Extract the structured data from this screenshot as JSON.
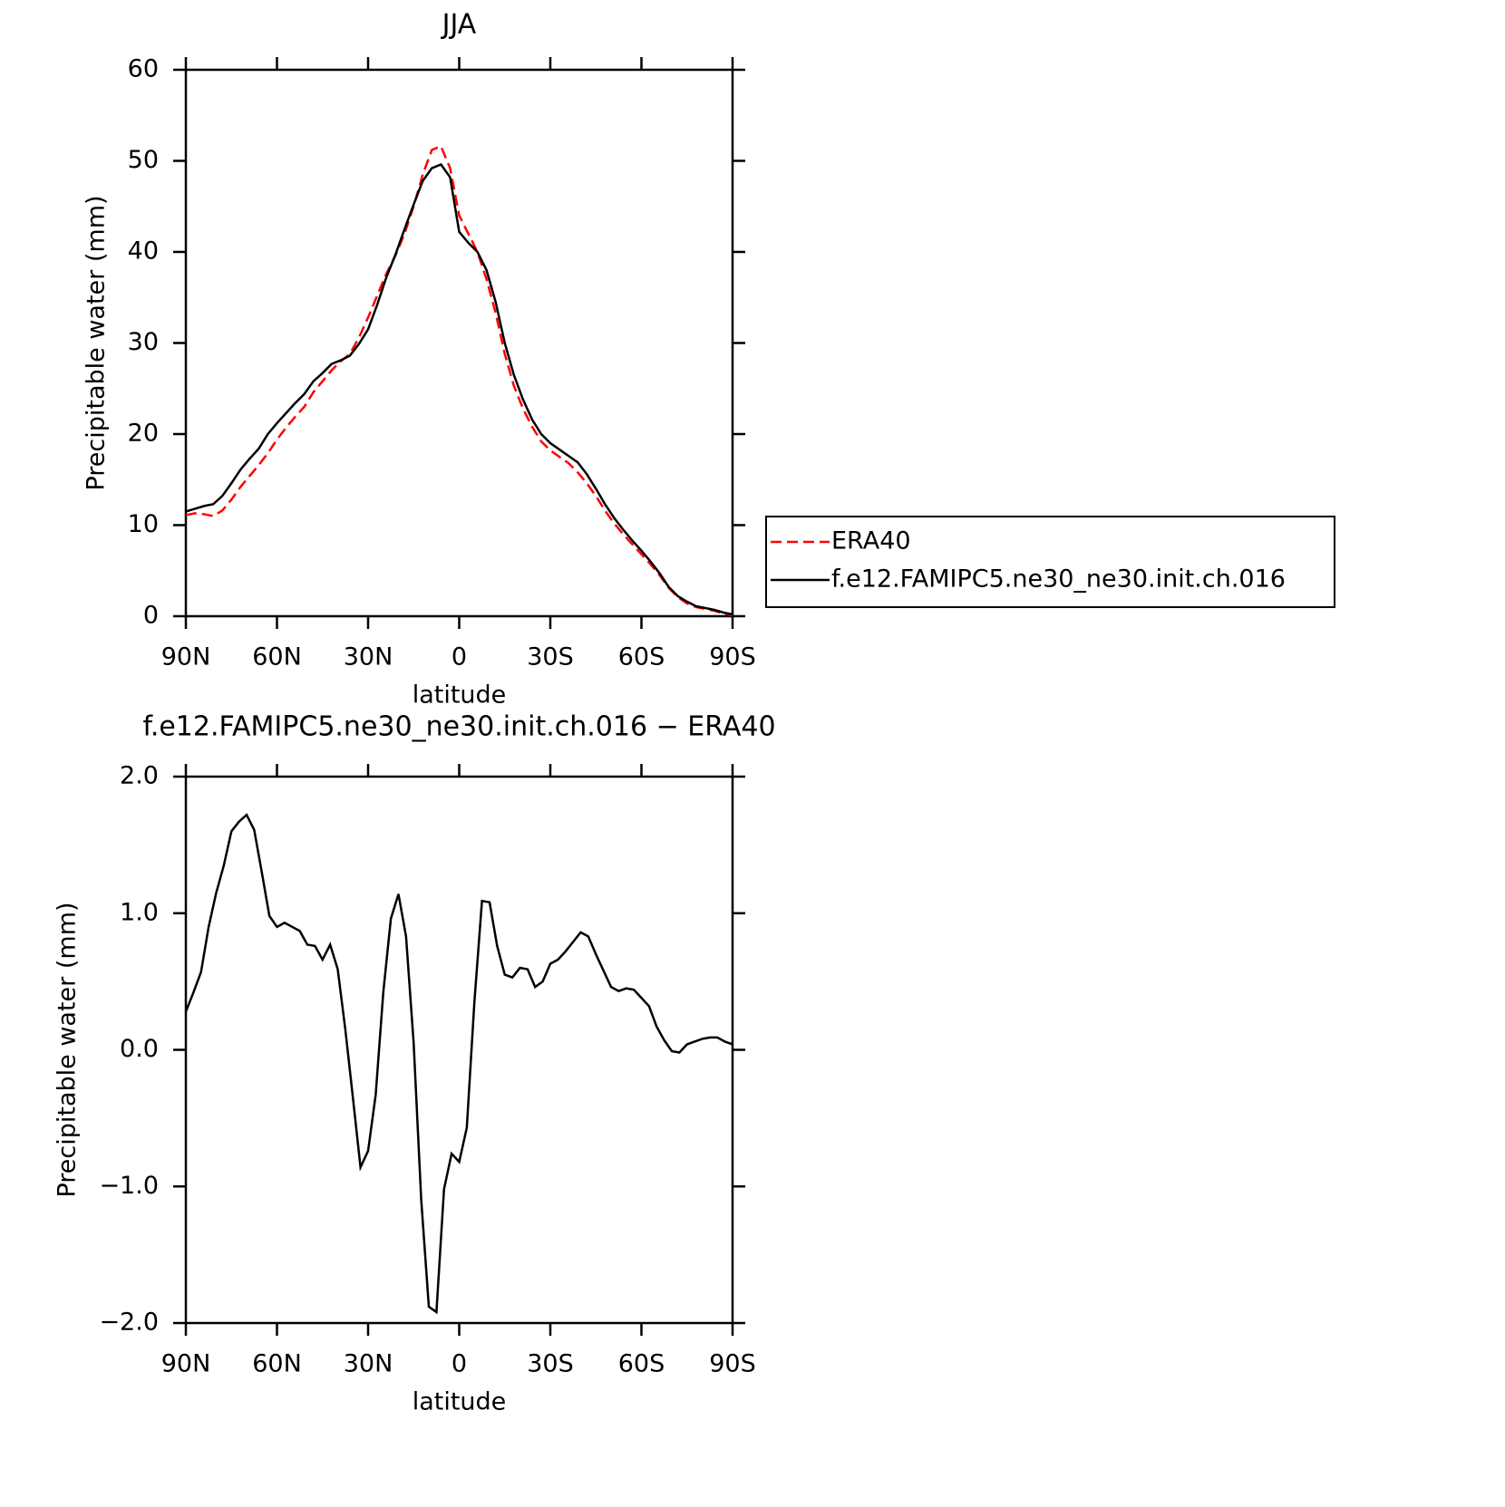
{
  "chart_data": [
    {
      "type": "line",
      "title": "JJA",
      "xlabel": "latitude",
      "ylabel": "Precipitable water (mm)",
      "xlim": [
        90,
        -90
      ],
      "ylim": [
        0,
        60
      ],
      "xticks": [
        {
          "value": 90,
          "label": "90N"
        },
        {
          "value": 60,
          "label": "60N"
        },
        {
          "value": 30,
          "label": "30N"
        },
        0,
        {
          "value": -30,
          "label": "30S"
        },
        {
          "value": -60,
          "label": "60S"
        },
        {
          "value": -90,
          "label": "90S"
        }
      ],
      "yticks": [
        0,
        10,
        20,
        30,
        40,
        50,
        60
      ],
      "legend": "right",
      "x": [
        90,
        87,
        84,
        81,
        78,
        75,
        72,
        69,
        66,
        63,
        60,
        57,
        54,
        51,
        48,
        45,
        42,
        39,
        36,
        33,
        30,
        27,
        24,
        21,
        18,
        15,
        12,
        9,
        6,
        3,
        0,
        -3,
        -6,
        -9,
        -12,
        -15,
        -18,
        -21,
        -24,
        -27,
        -30,
        -33,
        -36,
        -39,
        -42,
        -45,
        -48,
        -51,
        -54,
        -57,
        -60,
        -63,
        -66,
        -69,
        -72,
        -75,
        -78,
        -81,
        -84,
        -87,
        -90
      ],
      "series": [
        {
          "name": "ERA40",
          "color": "#ff0000",
          "dash": true,
          "values": [
            11.1,
            11.3,
            11.2,
            11.0,
            11.6,
            12.8,
            14.2,
            15.4,
            16.6,
            17.9,
            19.4,
            20.7,
            21.9,
            23.0,
            24.6,
            25.8,
            27.0,
            28.0,
            28.8,
            30.6,
            32.8,
            35.2,
            37.6,
            39.6,
            42.0,
            45.0,
            48.5,
            51.2,
            51.6,
            49.2,
            44.0,
            42.0,
            40.0,
            37.0,
            33.3,
            28.8,
            25.3,
            22.8,
            20.8,
            19.2,
            18.2,
            17.5,
            16.8,
            15.8,
            14.6,
            13.2,
            11.6,
            10.2,
            9.0,
            7.9,
            6.8,
            5.7,
            4.5,
            3.1,
            2.1,
            1.4,
            1.0,
            0.8,
            0.6,
            0.3,
            0.1
          ]
        },
        {
          "name": "f.e12.FAMIPC5.ne30_ne30.init.ch.016",
          "color": "#000000",
          "dash": false,
          "values": [
            11.5,
            11.8,
            12.1,
            12.3,
            13.2,
            14.6,
            16.1,
            17.3,
            18.4,
            20.0,
            21.2,
            22.3,
            23.4,
            24.4,
            25.8,
            26.7,
            27.7,
            28.1,
            28.6,
            29.9,
            31.5,
            34.2,
            37.2,
            39.7,
            42.5,
            45.2,
            47.8,
            49.2,
            49.6,
            48.2,
            42.2,
            41.0,
            40.0,
            38.0,
            34.5,
            30.0,
            26.5,
            23.8,
            21.6,
            20.0,
            19.0,
            18.3,
            17.6,
            16.9,
            15.6,
            14.0,
            12.3,
            10.8,
            9.5,
            8.3,
            7.2,
            6.0,
            4.7,
            3.2,
            2.2,
            1.6,
            1.1,
            0.9,
            0.7,
            0.4,
            0.2
          ]
        }
      ]
    },
    {
      "type": "line",
      "title": "f.e12.FAMIPC5.ne30_ne30.init.ch.016 − ERA40",
      "xlabel": "latitude",
      "ylabel": "Precipitable water (mm)",
      "xlim": [
        90,
        -90
      ],
      "ylim": [
        -2,
        2
      ],
      "xticks": [
        {
          "value": 90,
          "label": "90N"
        },
        {
          "value": 60,
          "label": "60N"
        },
        {
          "value": 30,
          "label": "30N"
        },
        0,
        {
          "value": -30,
          "label": "30S"
        },
        {
          "value": -60,
          "label": "60S"
        },
        {
          "value": -90,
          "label": "90S"
        }
      ],
      "yticks": [
        {
          "value": -2,
          "label": "−2.0"
        },
        {
          "value": -1,
          "label": "−1.0"
        },
        {
          "value": 0,
          "label": "0.0"
        },
        {
          "value": 1,
          "label": "1.0"
        },
        {
          "value": 2,
          "label": "2.0"
        }
      ],
      "x": [
        90,
        87.5,
        85,
        82.5,
        80,
        77.5,
        75,
        72.5,
        70,
        67.5,
        65,
        62.5,
        60,
        57.5,
        55,
        52.5,
        50,
        47.5,
        45,
        42.5,
        40,
        37.5,
        35,
        32.5,
        30,
        27.5,
        25,
        22.5,
        20,
        17.5,
        15,
        12.5,
        10,
        7.5,
        5,
        2.5,
        0,
        -2.5,
        -5,
        -7.5,
        -10,
        -12.5,
        -15,
        -17.5,
        -20,
        -22.5,
        -25,
        -27.5,
        -30,
        -32.5,
        -35,
        -37.5,
        -40,
        -42.5,
        -45,
        -47.5,
        -50,
        -52.5,
        -55,
        -57.5,
        -60,
        -62.5,
        -65,
        -67.5,
        -70,
        -72.5,
        -75,
        -77.5,
        -80,
        -82.5,
        -85,
        -87.5,
        -90
      ],
      "series": [
        {
          "color": "#000000",
          "dash": false,
          "values": [
            0.28,
            0.42,
            0.57,
            0.9,
            1.15,
            1.35,
            1.6,
            1.67,
            1.72,
            1.61,
            1.3,
            0.98,
            0.9,
            0.93,
            0.9,
            0.87,
            0.77,
            0.76,
            0.66,
            0.77,
            0.59,
            0.15,
            -0.35,
            -0.86,
            -0.74,
            -0.33,
            0.42,
            0.96,
            1.14,
            0.83,
            0.05,
            -1.1,
            -1.88,
            -1.92,
            -1.02,
            -0.76,
            -0.82,
            -0.57,
            0.35,
            1.09,
            1.08,
            0.76,
            0.55,
            0.53,
            0.6,
            0.59,
            0.46,
            0.5,
            0.63,
            0.66,
            0.72,
            0.79,
            0.86,
            0.83,
            0.7,
            0.58,
            0.46,
            0.43,
            0.45,
            0.44,
            0.38,
            0.32,
            0.17,
            0.07,
            -0.01,
            -0.02,
            0.04,
            0.06,
            0.08,
            0.09,
            0.09,
            0.06,
            0.04
          ]
        }
      ]
    }
  ]
}
